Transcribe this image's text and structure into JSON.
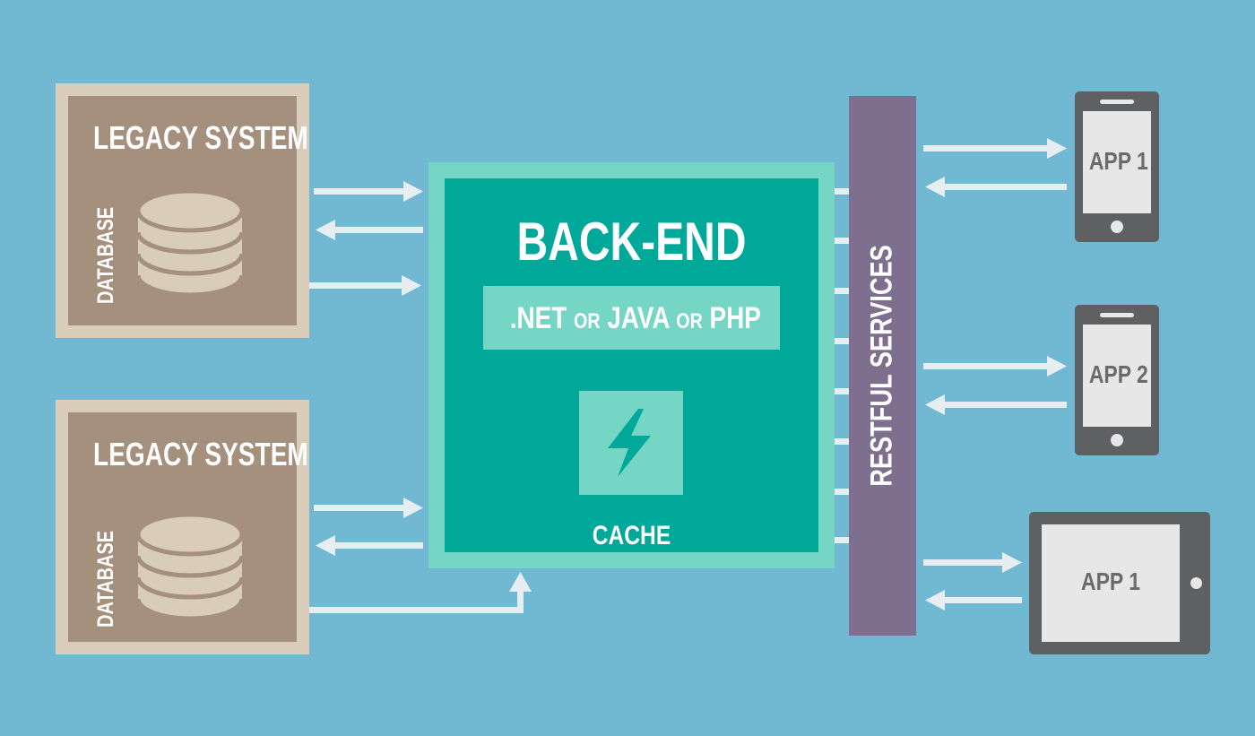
{
  "legacy_systems": [
    {
      "title": "LEGACY SYSTEM",
      "database_label": "DATABASE"
    },
    {
      "title": "LEGACY SYSTEM",
      "database_label": "DATABASE"
    }
  ],
  "backend": {
    "title": "BACK-END",
    "tech": {
      "net": ".NET",
      "or1": "OR",
      "java": "JAVA",
      "or2": "OR",
      "php": "PHP"
    },
    "cache_label": "CACHE",
    "cache_icon": "lightning-bolt-icon"
  },
  "restful": {
    "label": "RESTFUL SERVICES"
  },
  "devices": [
    {
      "type": "phone",
      "label": "APP 1"
    },
    {
      "type": "phone",
      "label": "APP 2"
    },
    {
      "type": "tablet",
      "label": "APP 1"
    }
  ],
  "colors": {
    "background": "#71b8d3",
    "legacy_border": "#d9cdb9",
    "legacy_fill": "#a5907d",
    "backend_border": "#76d6c5",
    "backend_fill": "#00a89a",
    "restful_bar": "#7e6f8e",
    "device_frame": "#5f6062",
    "device_screen": "#e7e7e7",
    "arrow": "#e6eef2"
  }
}
